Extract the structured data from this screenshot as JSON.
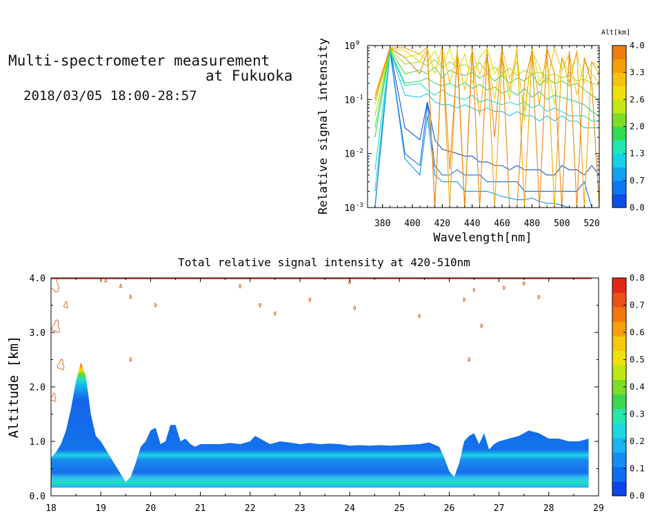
{
  "header": {
    "title_line1": "Multi-spectrometer measurement",
    "title_line2": "at Fukuoka",
    "datetime": "2018/03/05 18:00-28:57"
  },
  "chart_data": [
    {
      "type": "line",
      "xlabel": "Wavelength[nm]",
      "ylabel": "Relative signal intensity",
      "yscale": "log",
      "xlim": [
        370,
        525
      ],
      "ylim": [
        0.001,
        1
      ],
      "x_ticks": [
        "380",
        "400",
        "420",
        "440",
        "460",
        "480",
        "500",
        "520"
      ],
      "y_ticks": [
        "10",
        "10",
        "10",
        "10"
      ],
      "y_tick_exps": [
        "-3",
        "-2",
        "-1",
        "0"
      ],
      "colorbar": {
        "label": "Alt[km]",
        "ticks": [
          "0.0",
          "0.7",
          "1.3",
          "2.0",
          "2.6",
          "3.3",
          "4.0"
        ],
        "colors": [
          "#0a50e6",
          "#0f78f0",
          "#14a0f0",
          "#14d2e6",
          "#1ee6b4",
          "#32dc50",
          "#7ddc28",
          "#c3e614",
          "#f0e10a",
          "#f5c30a",
          "#f5a00a",
          "#f07d0f"
        ]
      },
      "x": [
        375,
        385,
        395,
        405,
        410,
        415,
        420,
        425,
        430,
        435,
        440,
        445,
        450,
        455,
        460,
        465,
        470,
        475,
        480,
        485,
        490,
        495,
        500,
        505,
        510,
        515,
        520,
        525
      ],
      "series": [
        {
          "alt": 0.2,
          "color": "#1450d2",
          "values": [
            0.001,
            0.85,
            0.03,
            0.018,
            0.09,
            0.018,
            0.012,
            0.011,
            0.01,
            0.009,
            0.009,
            0.007,
            0.007,
            0.006,
            0.006,
            0.005,
            0.006,
            0.005,
            0.005,
            0.005,
            0.004,
            0.004,
            0.006,
            0.005,
            0.005,
            0.004,
            0.006,
            0.004
          ]
        },
        {
          "alt": 0.45,
          "color": "#0f6ee6",
          "values": [
            0.001,
            0.8,
            0.01,
            0.006,
            0.08,
            0.006,
            0.004,
            0.004,
            0.005,
            0.004,
            0.004,
            0.004,
            0.003,
            0.003,
            0.003,
            0.003,
            0.003,
            0.002,
            0.002,
            0.002,
            0.002,
            0.002,
            0.002,
            0.002,
            0.002,
            0.003,
            0.001,
            0.001
          ]
        },
        {
          "alt": 0.7,
          "color": "#1492eb",
          "values": [
            0.001,
            0.78,
            0.008,
            0.004,
            0.05,
            0.004,
            0.003,
            0.003,
            0.003,
            0.002,
            0.002,
            0.002,
            0.002,
            0.0018,
            0.0016,
            0.0015,
            0.0014,
            0.0014,
            0.0015,
            0.0013,
            0.0012,
            0.0012,
            0.0011,
            0.001,
            0.001,
            0.001,
            0.001,
            0.001
          ]
        },
        {
          "alt": 1.0,
          "color": "#19c8e6",
          "values": [
            0.002,
            0.8,
            0.12,
            0.11,
            0.13,
            0.09,
            0.08,
            0.08,
            0.07,
            0.08,
            0.07,
            0.06,
            0.07,
            0.06,
            0.06,
            0.05,
            0.06,
            0.05,
            0.05,
            0.04,
            0.05,
            0.04,
            0.05,
            0.04,
            0.04,
            0.03,
            0.03,
            0.03
          ]
        },
        {
          "alt": 1.3,
          "color": "#1edcc8",
          "values": [
            0.005,
            0.78,
            0.18,
            0.2,
            0.15,
            0.12,
            0.15,
            0.12,
            0.11,
            0.1,
            0.12,
            0.09,
            0.1,
            0.09,
            0.08,
            0.09,
            0.08,
            0.09,
            0.07,
            0.08,
            0.06,
            0.07,
            0.06,
            0.05,
            0.05,
            0.05,
            0.04,
            0.04
          ]
        },
        {
          "alt": 1.7,
          "color": "#28dc78",
          "values": [
            0.02,
            0.82,
            0.2,
            0.22,
            0.25,
            0.2,
            0.18,
            0.2,
            0.17,
            0.21,
            0.16,
            0.19,
            0.15,
            0.17,
            0.13,
            0.15,
            0.12,
            0.16,
            0.11,
            0.14,
            0.1,
            0.12,
            0.11,
            0.1,
            0.09,
            0.08,
            0.06,
            0.05
          ]
        },
        {
          "alt": 2.0,
          "color": "#4bdc32",
          "values": [
            0.03,
            0.85,
            0.3,
            0.35,
            0.3,
            0.4,
            0.25,
            0.35,
            0.3,
            0.28,
            0.32,
            0.25,
            0.3,
            0.22,
            0.28,
            0.2,
            0.25,
            0.22,
            0.3,
            0.18,
            0.25,
            0.2,
            0.22,
            0.18,
            0.2,
            0.15,
            0.12,
            0.1
          ]
        },
        {
          "alt": 2.4,
          "color": "#9be11e",
          "values": [
            0.05,
            0.87,
            0.45,
            0.5,
            0.42,
            0.55,
            0.38,
            0.5,
            0.4,
            0.45,
            0.35,
            0.48,
            0.32,
            0.4,
            0.3,
            0.38,
            0.28,
            0.35,
            0.3,
            0.32,
            0.27,
            0.3,
            0.25,
            0.28,
            0.22,
            0.24,
            0.2,
            0.18
          ]
        },
        {
          "alt": 2.7,
          "color": "#d7e10f",
          "values": [
            0.08,
            0.88,
            0.6,
            0.7,
            0.5,
            0.8,
            0.4,
            0.9,
            0.3,
            0.7,
            0.2,
            0.6,
            0.9,
            0.3,
            0.5,
            0.1,
            0.7,
            0.04,
            0.9,
            0.2,
            0.5,
            0.08,
            0.6,
            0.3,
            0.7,
            0.2,
            0.5,
            0.4
          ]
        },
        {
          "alt": 3.0,
          "color": "#f0c80a",
          "values": [
            0.1,
            0.9,
            0.8,
            0.5,
            0.9,
            0.3,
            0.95,
            0.2,
            0.7,
            0.15,
            0.8,
            0.3,
            0.6,
            0.1,
            0.9,
            0.25,
            0.5,
            0.06,
            0.8,
            0.4,
            0.2,
            0.9,
            0.35,
            0.7,
            0.12,
            0.5,
            0.3,
            0.2
          ]
        },
        {
          "alt": 3.4,
          "color": "#f5a50a",
          "values": [
            0.12,
            0.92,
            0.9,
            0.7,
            0.95,
            0.001,
            0.8,
            0.001,
            0.9,
            0.001,
            0.7,
            0.05,
            0.85,
            0.001,
            0.6,
            0.15,
            0.9,
            0.001,
            0.7,
            0.08,
            0.9,
            0.001,
            0.6,
            0.2,
            0.8,
            0.001,
            0.5,
            0.3
          ]
        },
        {
          "alt": 3.8,
          "color": "#e8850f",
          "values": [
            0.1,
            0.9,
            0.6,
            0.3,
            0.8,
            0.001,
            0.9,
            0.005,
            0.6,
            0.001,
            0.9,
            0.001,
            0.7,
            0.02,
            0.9,
            0.001,
            0.001,
            0.2,
            0.8,
            0.001,
            0.9,
            0.3,
            0.001,
            0.8,
            0.001,
            0.6,
            0.2,
            0.001
          ]
        }
      ]
    },
    {
      "type": "heatmap",
      "title": "Total relative signal intensity at 420-510nm",
      "ylabel": "Altitude [km]",
      "xlim": [
        18,
        29
      ],
      "ylim": [
        0,
        4
      ],
      "x_ticks": [
        "18",
        "19",
        "20",
        "21",
        "22",
        "23",
        "24",
        "25",
        "26",
        "27",
        "28",
        "29"
      ],
      "y_ticks": [
        "0.0",
        "1.0",
        "2.0",
        "3.0",
        "4.0"
      ],
      "colorbar": {
        "ticks": [
          "0.0",
          "0.1",
          "0.2",
          "0.3",
          "0.4",
          "0.5",
          "0.6",
          "0.7",
          "0.8"
        ],
        "colors": [
          "#0a46eb",
          "#0f6ef0",
          "#148cf0",
          "#19b4f0",
          "#1ed7e1",
          "#28e6aa",
          "#3cd750",
          "#7ddc28",
          "#bee614",
          "#f0e10a",
          "#f5c80a",
          "#f5a00a",
          "#f0780f",
          "#eb5014",
          "#e12814"
        ]
      },
      "profile": {
        "x": [
          18.0,
          18.1,
          18.2,
          18.3,
          18.4,
          18.5,
          18.6,
          18.7,
          18.8,
          18.9,
          19.0,
          19.1,
          19.2,
          19.3,
          19.4,
          19.5,
          19.6,
          19.7,
          19.8,
          19.9,
          20.0,
          20.1,
          20.2,
          20.3,
          20.4,
          20.5,
          20.6,
          20.7,
          20.8,
          20.9,
          21.0,
          21.2,
          21.4,
          21.6,
          21.8,
          22.0,
          22.1,
          22.2,
          22.4,
          22.6,
          22.8,
          23.0,
          23.2,
          23.4,
          23.6,
          23.8,
          24.0,
          24.2,
          24.4,
          24.6,
          24.8,
          25.0,
          25.2,
          25.4,
          25.6,
          25.8,
          25.9,
          26.0,
          26.1,
          26.2,
          26.3,
          26.4,
          26.5,
          26.6,
          26.7,
          26.8,
          26.9,
          27.0,
          27.2,
          27.4,
          27.6,
          27.8,
          28.0,
          28.2,
          28.4,
          28.6,
          28.8
        ],
        "top_km": [
          0.7,
          0.8,
          0.95,
          1.2,
          1.6,
          2.1,
          2.45,
          2.2,
          1.5,
          1.1,
          1.0,
          0.85,
          0.7,
          0.55,
          0.4,
          0.25,
          0.35,
          0.6,
          0.9,
          1.0,
          1.2,
          1.25,
          0.95,
          1.0,
          1.3,
          1.3,
          1.0,
          1.05,
          0.95,
          0.9,
          0.95,
          0.95,
          0.95,
          0.97,
          0.95,
          1.0,
          1.1,
          1.05,
          0.95,
          1.0,
          0.98,
          0.95,
          0.97,
          0.95,
          0.96,
          0.95,
          0.92,
          0.93,
          0.92,
          0.93,
          0.92,
          0.93,
          0.94,
          0.95,
          0.98,
          0.9,
          0.7,
          0.45,
          0.35,
          0.6,
          1.0,
          1.1,
          1.15,
          0.95,
          1.15,
          0.85,
          0.95,
          1.0,
          1.05,
          1.1,
          1.2,
          1.15,
          1.05,
          1.05,
          1.0,
          1.0,
          1.05
        ]
      }
    }
  ]
}
